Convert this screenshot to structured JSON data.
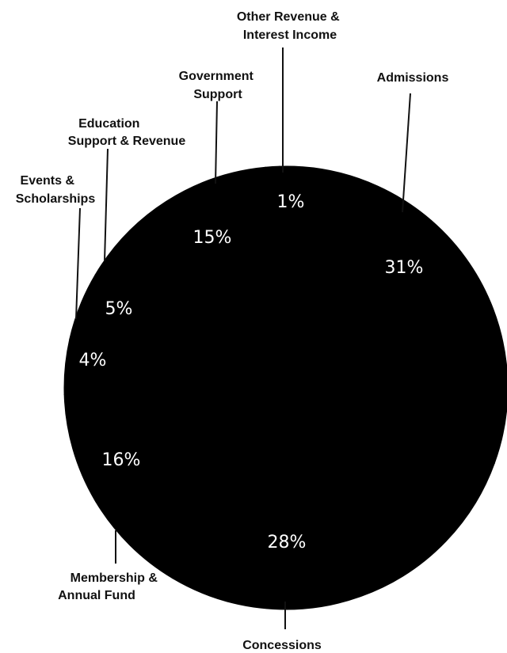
{
  "chart_data": {
    "type": "pie",
    "slices": [
      {
        "label": "Admissions",
        "value": 31,
        "value_label": "31%"
      },
      {
        "label": "Concessions",
        "value": 28,
        "value_label": "28%"
      },
      {
        "label": "Membership & Annual Fund",
        "value": 16,
        "value_label": "16%"
      },
      {
        "label": "Events & Scholarships",
        "value": 4,
        "value_label": "4%"
      },
      {
        "label": "Education Support & Revenue",
        "value": 5,
        "value_label": "5%"
      },
      {
        "label": "Government Support",
        "value": 15,
        "value_label": "15%"
      },
      {
        "label": "Other Revenue & Interest Income",
        "value": 1,
        "value_label": "1%"
      }
    ],
    "colors": {
      "slice": "#000000",
      "label_text": "#111111",
      "value_text": "#ffffff"
    }
  }
}
